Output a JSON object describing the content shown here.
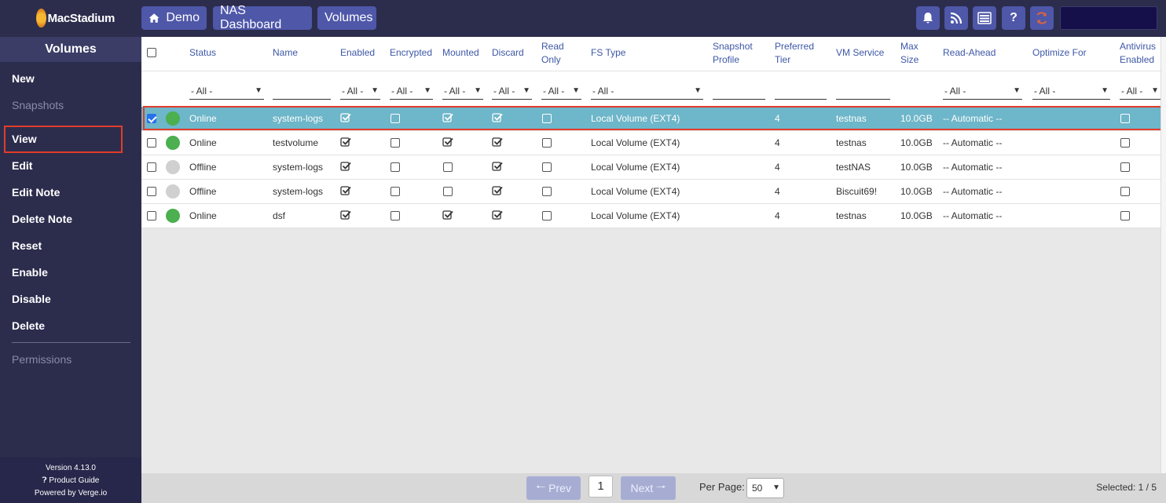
{
  "brand": {
    "name": "MacStadium"
  },
  "breadcrumbs": [
    "Demo",
    "NAS Dashboard",
    "Volumes"
  ],
  "toolbar_icons": [
    "bell-icon",
    "rss-icon",
    "list-icon",
    "help-icon",
    "refresh-icon"
  ],
  "toolbar": {
    "help_glyph": "?"
  },
  "sidebar": {
    "title": "Volumes",
    "items": [
      {
        "label": "New",
        "enabled": true
      },
      {
        "label": "Snapshots",
        "enabled": false
      },
      {
        "label": "View",
        "enabled": true
      },
      {
        "label": "Edit",
        "enabled": true
      },
      {
        "label": "Edit Note",
        "enabled": true
      },
      {
        "label": "Delete Note",
        "enabled": true
      },
      {
        "label": "Reset",
        "enabled": true
      },
      {
        "label": "Enable",
        "enabled": true
      },
      {
        "label": "Disable",
        "enabled": true
      },
      {
        "label": "Delete",
        "enabled": true
      },
      {
        "label": "Permissions",
        "enabled": false
      }
    ],
    "footer": {
      "version": "Version 4.13.0",
      "guide": "Product Guide",
      "powered": "Powered by Verge.io"
    }
  },
  "table": {
    "headers": {
      "status": "Status",
      "name": "Name",
      "enabled": "Enabled",
      "encrypted": "Encrypted",
      "mounted": "Mounted",
      "discard": "Discard",
      "read_only_1": "Read",
      "read_only_2": "Only",
      "fs_type": "FS Type",
      "snapshot_profile_1": "Snapshot",
      "snapshot_profile_2": "Profile",
      "preferred_tier_1": "Preferred",
      "preferred_tier_2": "Tier",
      "vm_service": "VM Service",
      "max_size_1": "Max",
      "max_size_2": "Size",
      "read_ahead": "Read-Ahead",
      "optimize_for": "Optimize For",
      "antivirus_1": "Antivirus",
      "antivirus_2": "Enabled"
    },
    "filter_all": "- All -",
    "rows": [
      {
        "selected": true,
        "status": "Online",
        "status_color": "#4caf50",
        "name": "system-logs",
        "enabled": true,
        "encrypted": false,
        "mounted": true,
        "discard": true,
        "read_only": false,
        "fs_type": "Local Volume (EXT4)",
        "tier": "4",
        "vm_service": "testnas",
        "max_size": "10.0GB",
        "read_ahead": "-- Automatic --",
        "antivirus": false
      },
      {
        "selected": false,
        "status": "Online",
        "status_color": "#4caf50",
        "name": "testvolume",
        "enabled": true,
        "encrypted": false,
        "mounted": true,
        "discard": true,
        "read_only": false,
        "fs_type": "Local Volume (EXT4)",
        "tier": "4",
        "vm_service": "testnas",
        "max_size": "10.0GB",
        "read_ahead": "-- Automatic --",
        "antivirus": false
      },
      {
        "selected": false,
        "status": "Offline",
        "status_color": "#d0d0d0",
        "name": "system-logs",
        "enabled": true,
        "encrypted": false,
        "mounted": false,
        "discard": true,
        "read_only": false,
        "fs_type": "Local Volume (EXT4)",
        "tier": "4",
        "vm_service": "testNAS",
        "max_size": "10.0GB",
        "read_ahead": "-- Automatic --",
        "antivirus": false
      },
      {
        "selected": false,
        "status": "Offline",
        "status_color": "#d0d0d0",
        "name": "system-logs",
        "enabled": true,
        "encrypted": false,
        "mounted": false,
        "discard": true,
        "read_only": false,
        "fs_type": "Local Volume (EXT4)",
        "tier": "4",
        "vm_service": "Biscuit69!",
        "max_size": "10.0GB",
        "read_ahead": "-- Automatic --",
        "antivirus": false
      },
      {
        "selected": false,
        "status": "Online",
        "status_color": "#4caf50",
        "name": "dsf",
        "enabled": true,
        "encrypted": false,
        "mounted": true,
        "discard": true,
        "read_only": false,
        "fs_type": "Local Volume (EXT4)",
        "tier": "4",
        "vm_service": "testnas",
        "max_size": "10.0GB",
        "read_ahead": "-- Automatic --",
        "antivirus": false
      }
    ]
  },
  "pagination": {
    "prev": "Prev",
    "next": "Next",
    "page": "1",
    "per_page_label": "Per Page:",
    "per_page_value": "50",
    "selected": "Selected: 1 / 5"
  }
}
